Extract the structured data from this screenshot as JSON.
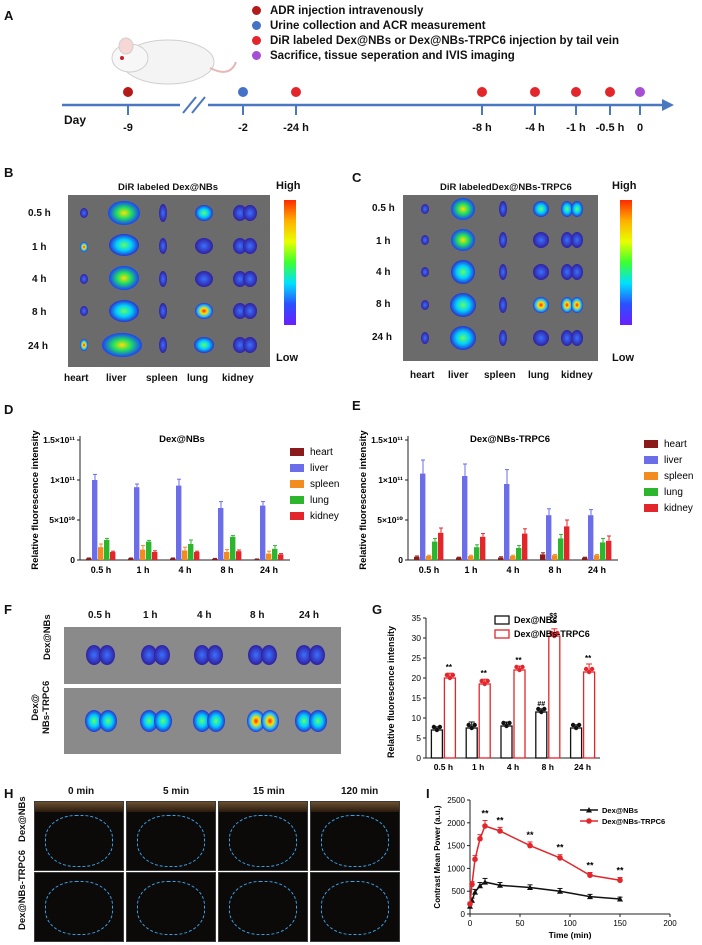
{
  "panelA": {
    "label": "A",
    "legend": [
      {
        "text": "ADR injection intravenously",
        "color": "#b31b1b"
      },
      {
        "text": "Urine collection and ACR measurement",
        "color": "#4472c4"
      },
      {
        "text": "DiR labeled Dex@NBs or Dex@NBs-TRPC6 injection by tail vein",
        "color": "#e3262b"
      },
      {
        "text": "Sacrifice, tissue seperation and IVIS imaging",
        "color": "#a64ed6"
      }
    ],
    "day_label": "Day",
    "ticks": [
      "-9",
      "-2",
      "-24 h",
      "-8 h",
      "-4 h",
      "-1 h",
      "-0.5 h",
      "0"
    ]
  },
  "panelB": {
    "label": "B",
    "title": "DiR labeled Dex@NBs",
    "times": [
      "0.5 h",
      "1 h",
      "4 h",
      "8 h",
      "24 h"
    ],
    "organs": [
      "heart",
      "liver",
      "spleen",
      "lung",
      "kidney"
    ],
    "scale_high": "High",
    "scale_low": "Low"
  },
  "panelC": {
    "label": "C",
    "title": "DiR labeledDex@NBs-TRPC6",
    "times": [
      "0.5 h",
      "1 h",
      "4 h",
      "8 h",
      "24 h"
    ],
    "organs": [
      "heart",
      "liver",
      "spleen",
      "lung",
      "kidney"
    ],
    "scale_high": "High",
    "scale_low": "Low"
  },
  "panelD": {
    "label": "D"
  },
  "panelE": {
    "label": "E"
  },
  "panelF": {
    "label": "F",
    "times": [
      "0.5 h",
      "1 h",
      "4 h",
      "8 h",
      "24 h"
    ],
    "row1": "Dex@NBs",
    "row2a": "Dex@",
    "row2b": "NBs-TRPC6"
  },
  "panelG": {
    "label": "G"
  },
  "panelH": {
    "label": "H",
    "times": [
      "0 min",
      "5 min",
      "15 min",
      "120 min"
    ],
    "row1": "Dex@NBs",
    "row2": "Dex@NBs-TRPC6"
  },
  "panelI": {
    "label": "I"
  },
  "chart_data": [
    {
      "id": "D",
      "type": "bar",
      "title": "Dex@NBs",
      "ylabel": "Relative fluorescence intensity",
      "ytick_labels": [
        "0",
        "5×10¹⁰",
        "1×10¹¹",
        "1.5×10¹¹"
      ],
      "ylim": [
        0,
        150000000000
      ],
      "categories": [
        "0.5 h",
        "1 h",
        "4 h",
        "8 h",
        "24 h"
      ],
      "series": [
        {
          "name": "heart",
          "color": "#8b1a1a",
          "values": [
            2000000000,
            2000000000,
            2000000000,
            1500000000,
            1000000000
          ],
          "errors": [
            500000000,
            500000000,
            500000000,
            500000000,
            300000000
          ]
        },
        {
          "name": "liver",
          "color": "#6b6ee8",
          "values": [
            100000000000,
            91000000000,
            93000000000,
            65000000000,
            68000000000
          ],
          "errors": [
            7000000000,
            4000000000,
            8000000000,
            8000000000,
            5000000000
          ]
        },
        {
          "name": "spleen",
          "color": "#f28c1e",
          "values": [
            16000000000,
            13000000000,
            12000000000,
            10000000000,
            8000000000
          ],
          "errors": [
            4000000000,
            5000000000,
            4000000000,
            3000000000,
            3000000000
          ]
        },
        {
          "name": "lung",
          "color": "#2db52d",
          "values": [
            25000000000,
            23000000000,
            20000000000,
            29000000000,
            14000000000
          ],
          "errors": [
            2000000000,
            1500000000,
            5000000000,
            1500000000,
            4000000000
          ]
        },
        {
          "name": "kidney",
          "color": "#e3262b",
          "values": [
            10000000000,
            10000000000,
            10000000000,
            11000000000,
            7000000000
          ],
          "errors": [
            1000000000,
            1500000000,
            1000000000,
            1500000000,
            1000000000
          ]
        }
      ]
    },
    {
      "id": "E",
      "type": "bar",
      "title": "Dex@NBs-TRPC6",
      "ylabel": "Relative fluorescence intensity",
      "ytick_labels": [
        "0",
        "5×10¹⁰",
        "1×10¹¹",
        "1.5×10¹¹"
      ],
      "ylim": [
        0,
        150000000000
      ],
      "categories": [
        "0.5 h",
        "1 h",
        "4 h",
        "8 h",
        "24 h"
      ],
      "series": [
        {
          "name": "heart",
          "color": "#8b1a1a",
          "values": [
            4000000000,
            3000000000,
            3000000000,
            7000000000,
            3000000000
          ],
          "errors": [
            1000000000,
            500000000,
            1000000000,
            2000000000,
            500000000
          ]
        },
        {
          "name": "liver",
          "color": "#6b6ee8",
          "values": [
            108000000000,
            105000000000,
            95000000000,
            56000000000,
            56000000000
          ],
          "errors": [
            17000000000,
            15000000000,
            18000000000,
            8000000000,
            7000000000
          ]
        },
        {
          "name": "spleen",
          "color": "#f28c1e",
          "values": [
            5000000000,
            5000000000,
            5000000000,
            6000000000,
            6000000000
          ],
          "errors": [
            1000000000,
            1000000000,
            1000000000,
            1000000000,
            1000000000
          ]
        },
        {
          "name": "lung",
          "color": "#2db52d",
          "values": [
            23000000000,
            16000000000,
            15000000000,
            27000000000,
            22000000000
          ],
          "errors": [
            4000000000,
            3000000000,
            3000000000,
            5000000000,
            5000000000
          ]
        },
        {
          "name": "kidney",
          "color": "#e3262b",
          "values": [
            34000000000,
            29000000000,
            33000000000,
            42000000000,
            24000000000
          ],
          "errors": [
            6000000000,
            4000000000,
            6000000000,
            8000000000,
            6000000000
          ]
        }
      ]
    },
    {
      "id": "G",
      "type": "bar",
      "ylabel": "Relative fluorescence intensity",
      "ylim": [
        0,
        35
      ],
      "yticks": [
        0,
        5,
        10,
        15,
        20,
        25,
        30,
        35
      ],
      "categories": [
        "0.5 h",
        "1 h",
        "4 h",
        "8 h",
        "24 h"
      ],
      "series": [
        {
          "name": "Dex@NBs",
          "color": "#111111",
          "values": [
            7,
            7.5,
            8,
            11.5,
            7.5
          ],
          "errors": [
            0.8,
            1.5,
            1,
            0.8,
            0.8
          ]
        },
        {
          "name": "Dex@NBs-TRPC6",
          "color": "#e3262b",
          "values": [
            20,
            18.5,
            22,
            30.5,
            21.5
          ],
          "errors": [
            1.2,
            1.2,
            1,
            1.8,
            2
          ]
        }
      ],
      "annotations": {
        "trpc6_top": [
          "**",
          "**",
          "**",
          "**",
          "**"
        ],
        "trpc6_extra": [
          "",
          "",
          "",
          "$$",
          ""
        ],
        "nbs_top": [
          "",
          "",
          "",
          "##",
          ""
        ]
      }
    },
    {
      "id": "I",
      "type": "line",
      "xlabel": "Time (min)",
      "ylabel": "Contrast Mean Power (a.u.)",
      "xlim": [
        0,
        200
      ],
      "ylim": [
        0,
        2500
      ],
      "xticks": [
        0,
        50,
        100,
        150,
        200
      ],
      "yticks": [
        0,
        500,
        1000,
        1500,
        2000,
        2500
      ],
      "series": [
        {
          "name": "Dex@NBs",
          "color": "#111111",
          "x": [
            0,
            2,
            5,
            10,
            15,
            30,
            60,
            90,
            120,
            150
          ],
          "y": [
            170,
            300,
            480,
            620,
            700,
            630,
            580,
            500,
            380,
            330
          ],
          "errors": [
            30,
            50,
            60,
            70,
            80,
            60,
            60,
            60,
            50,
            40
          ]
        },
        {
          "name": "Dex@NBs-TRPC6",
          "color": "#e3262b",
          "x": [
            0,
            2,
            5,
            10,
            15,
            30,
            60,
            90,
            120,
            150
          ],
          "y": [
            220,
            650,
            1200,
            1650,
            1930,
            1820,
            1500,
            1230,
            850,
            740
          ],
          "errors": [
            40,
            60,
            80,
            90,
            120,
            80,
            80,
            70,
            60,
            60
          ]
        }
      ],
      "annotations": {
        "x": [
          15,
          30,
          60,
          90,
          120,
          150
        ],
        "text": [
          "**",
          "**",
          "**",
          "**",
          "**",
          "**"
        ]
      }
    }
  ]
}
